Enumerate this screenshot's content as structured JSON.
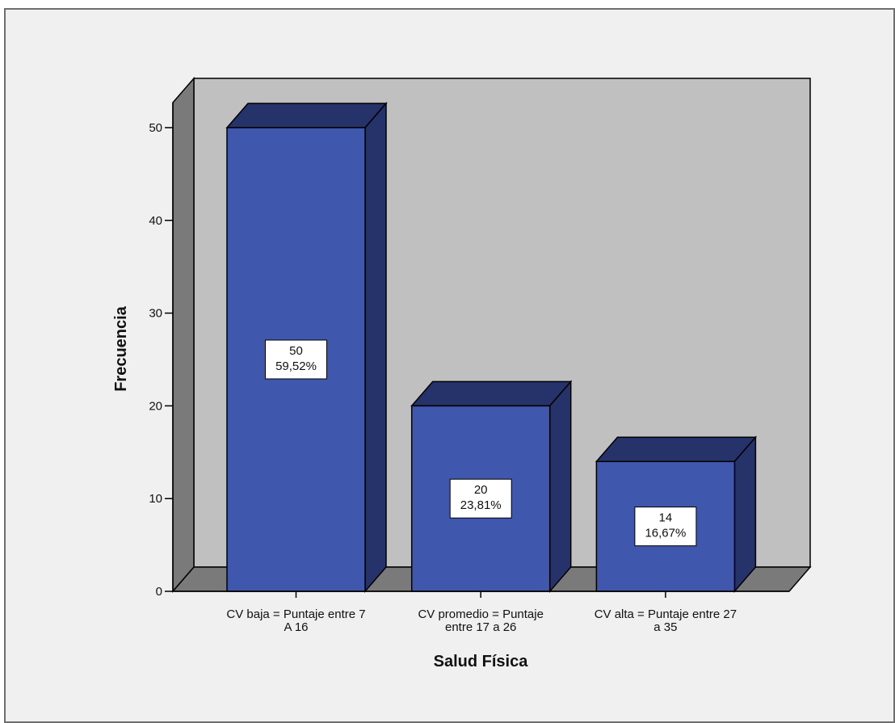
{
  "chart_data": {
    "type": "bar",
    "categories": [
      [
        "CV baja = Puntaje entre 7",
        "A 16"
      ],
      [
        "CV promedio = Puntaje",
        "entre 17 a 26"
      ],
      [
        "CV alta = Puntaje entre 27",
        "a 35"
      ]
    ],
    "values": [
      50,
      20,
      14
    ],
    "data_labels": [
      [
        "50",
        "59,52%"
      ],
      [
        "20",
        "23,81%"
      ],
      [
        "14",
        "16,67%"
      ]
    ],
    "xlabel": "Salud Física",
    "ylabel": "Frecuencia",
    "ylim": [
      0,
      50
    ],
    "yticks": [
      "0",
      "10",
      "20",
      "30",
      "40",
      "50"
    ],
    "colors": {
      "frame_bg": "#f0f0f0",
      "plot_back": "#c0c0c0",
      "plot_side": "#7a7a7a",
      "bar_front": "#3f57ac",
      "bar_top": "#25336a",
      "bar_side": "#25336a"
    }
  }
}
